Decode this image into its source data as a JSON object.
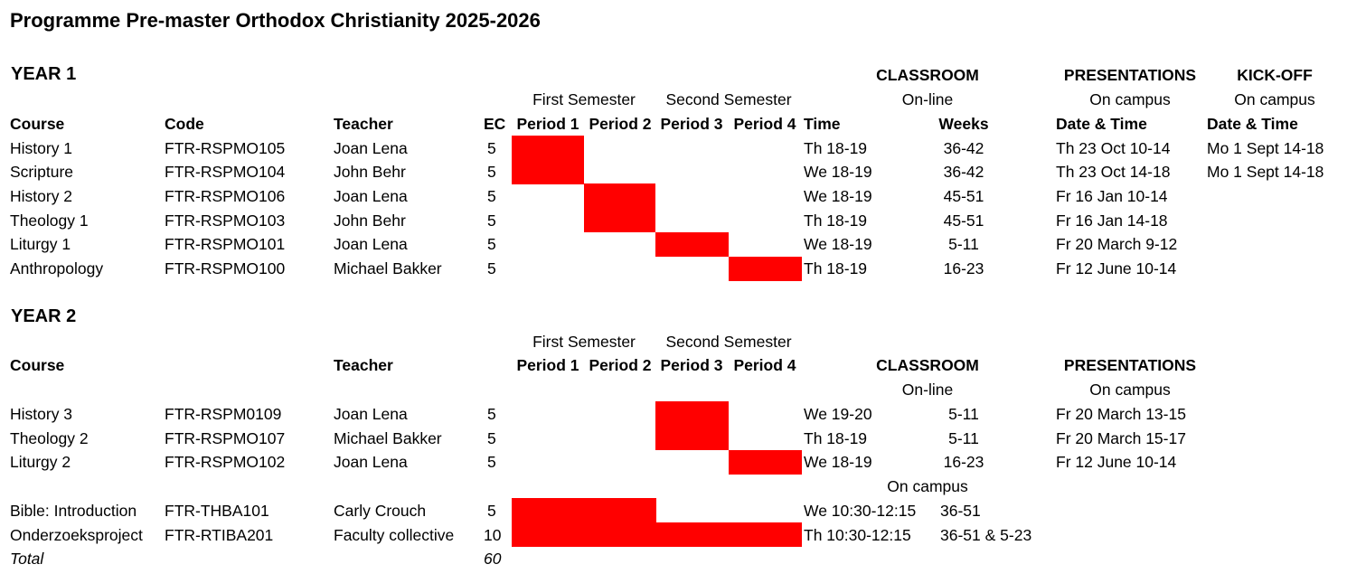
{
  "title": "Programme Pre-master Orthodox Christianity 2025-2026",
  "colors": {
    "highlight": "#ff0000"
  },
  "year1": {
    "heading": "YEAR 1",
    "group_headers": {
      "classroom": "CLASSROOM",
      "presentations": "PRESENTATIONS",
      "kickoff": "KICK-OFF"
    },
    "sub_headers": {
      "first_semester": "First Semester",
      "second_semester": "Second Semester",
      "online": "On-line",
      "presentations_location": "On campus",
      "kickoff_location": "On campus"
    },
    "columns": {
      "course": "Course",
      "code": "Code",
      "teacher": "Teacher",
      "ec": "EC",
      "p1": "Period 1",
      "p2": "Period 2",
      "p3": "Period 3",
      "p4": "Period 4",
      "time": "Time",
      "weeks": "Weeks",
      "pres_datetime": "Date & Time",
      "kick_datetime": "Date & Time"
    },
    "rows": [
      {
        "course": "History 1",
        "code": "FTR-RSPMO105",
        "teacher": "Joan Lena",
        "ec": "5",
        "periods": [
          1
        ],
        "time": "Th 18-19",
        "weeks": "36-42",
        "presentation": "Th 23 Oct 10-14",
        "kickoff": "Mo 1 Sept 14-18"
      },
      {
        "course": "Scripture",
        "code": "FTR-RSPMO104",
        "teacher": "John Behr",
        "ec": "5",
        "periods": [
          1
        ],
        "time": "We 18-19",
        "weeks": "36-42",
        "presentation": "Th 23 Oct 14-18",
        "kickoff": "Mo 1 Sept 14-18"
      },
      {
        "course": "History 2",
        "code": "FTR-RSPMO106",
        "teacher": "Joan Lena",
        "ec": "5",
        "periods": [
          2
        ],
        "time": "We 18-19",
        "weeks": "45-51",
        "presentation": "Fr 16 Jan 10-14",
        "kickoff": ""
      },
      {
        "course": "Theology 1",
        "code": "FTR-RSPMO103",
        "teacher": "John Behr",
        "ec": "5",
        "periods": [
          2
        ],
        "time": "Th 18-19",
        "weeks": "45-51",
        "presentation": "Fr 16 Jan 14-18",
        "kickoff": ""
      },
      {
        "course": "Liturgy 1",
        "code": "FTR-RSPMO101",
        "teacher": "Joan Lena",
        "ec": "5",
        "periods": [
          3
        ],
        "time": "We 18-19",
        "weeks": "5-11",
        "presentation": "Fr 20 March 9-12",
        "kickoff": ""
      },
      {
        "course": "Anthropology",
        "code": "FTR-RSPMO100",
        "teacher": "Michael Bakker",
        "ec": "5",
        "periods": [
          4
        ],
        "time": "Th 18-19",
        "weeks": "16-23",
        "presentation": "Fr 12 June 10-14",
        "kickoff": ""
      }
    ]
  },
  "year2": {
    "heading": "YEAR 2",
    "sub_headers": {
      "first_semester": "First Semester",
      "second_semester": "Second Semester",
      "classroom": "CLASSROOM",
      "presentations": "PRESENTATIONS",
      "online": "On-line",
      "presentations_location": "On campus",
      "oncampus": "On campus"
    },
    "columns": {
      "course": "Course",
      "teacher": "Teacher",
      "p1": "Period 1",
      "p2": "Period 2",
      "p3": "Period 3",
      "p4": "Period 4"
    },
    "rows": [
      {
        "course": "History 3",
        "code": "FTR-RSPM0109",
        "teacher": "Joan Lena",
        "ec": "5",
        "periods": [
          3
        ],
        "time": "We 19-20",
        "weeks": "5-11",
        "presentation": "Fr 20 March 13-15"
      },
      {
        "course": "Theology 2",
        "code": "FTR-RSPMO107",
        "teacher": "Michael Bakker",
        "ec": "5",
        "periods": [
          3
        ],
        "time": "Th 18-19",
        "weeks": "5-11",
        "presentation": "Fr 20 March 15-17"
      },
      {
        "course": "Liturgy 2",
        "code": "FTR-RSPMO102",
        "teacher": "Joan Lena",
        "ec": "5",
        "periods": [
          4
        ],
        "time": "We 18-19",
        "weeks": "16-23",
        "presentation": "Fr 12 June 10-14"
      }
    ],
    "campus_rows": [
      {
        "course": "Bible: Introduction",
        "code": "FTR-THBA101",
        "teacher": "Carly Crouch",
        "ec": "5",
        "periods": [
          1,
          2
        ],
        "time": "We 10:30-12:15",
        "weeks": "36-51"
      },
      {
        "course": "Onderzoeksproject",
        "code": "FTR-RTIBA201",
        "teacher": "Faculty collective",
        "ec": "10",
        "periods": [
          1,
          2,
          3,
          4
        ],
        "time": "Th 10:30-12:15",
        "weeks": "36-51 & 5-23"
      }
    ],
    "total": {
      "label": "Total",
      "value": "60"
    }
  }
}
